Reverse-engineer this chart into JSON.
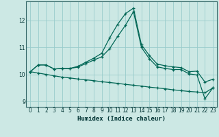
{
  "xlabel": "Humidex (Indice chaleur)",
  "background_color": "#cce8e4",
  "grid_color": "#99cccc",
  "line_color": "#006655",
  "xlim": [
    -0.5,
    23.5
  ],
  "ylim": [
    8.8,
    12.7
  ],
  "yticks": [
    9,
    10,
    11,
    12
  ],
  "xticks": [
    0,
    1,
    2,
    3,
    4,
    5,
    6,
    7,
    8,
    9,
    10,
    11,
    12,
    13,
    14,
    15,
    16,
    17,
    18,
    19,
    20,
    21,
    22,
    23
  ],
  "line1_x": [
    0,
    1,
    2,
    3,
    4,
    5,
    6,
    7,
    8,
    9,
    10,
    11,
    12,
    13,
    14,
    15,
    16,
    17,
    18,
    19,
    20,
    21,
    22,
    23
  ],
  "line1_y": [
    10.1,
    10.35,
    10.35,
    10.2,
    10.22,
    10.22,
    10.3,
    10.45,
    10.6,
    10.78,
    11.35,
    11.85,
    12.25,
    12.45,
    11.1,
    10.7,
    10.38,
    10.32,
    10.28,
    10.25,
    10.1,
    10.12,
    9.72,
    9.82
  ],
  "line2_x": [
    0,
    1,
    2,
    3,
    4,
    5,
    6,
    7,
    8,
    9,
    10,
    11,
    12,
    13,
    14,
    15,
    16,
    17,
    18,
    19,
    20,
    21,
    22,
    23
  ],
  "line2_y": [
    10.1,
    10.35,
    10.35,
    10.2,
    10.22,
    10.22,
    10.27,
    10.4,
    10.53,
    10.65,
    10.95,
    11.4,
    11.82,
    12.32,
    11.0,
    10.58,
    10.28,
    10.22,
    10.18,
    10.18,
    10.02,
    9.98,
    9.1,
    9.5
  ],
  "line3_x": [
    0,
    1,
    2,
    3,
    4,
    5,
    6,
    7,
    8,
    9,
    10,
    11,
    12,
    13,
    14,
    15,
    16,
    17,
    18,
    19,
    20,
    21,
    22,
    23
  ],
  "line3_y": [
    10.1,
    10.05,
    10.0,
    9.95,
    9.9,
    9.87,
    9.83,
    9.8,
    9.77,
    9.73,
    9.7,
    9.67,
    9.63,
    9.6,
    9.57,
    9.53,
    9.5,
    9.47,
    9.43,
    9.4,
    9.37,
    9.35,
    9.32,
    9.5
  ]
}
